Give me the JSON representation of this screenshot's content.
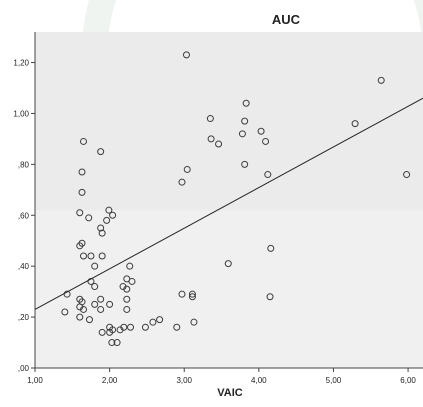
{
  "chart_data": {
    "type": "scatter",
    "title": "AUC",
    "xlabel": "VAIC",
    "ylabel": "",
    "xlim": [
      1.0,
      6.2
    ],
    "ylim": [
      0.0,
      1.32
    ],
    "x_ticks": [
      1.0,
      2.0,
      3.0,
      4.0,
      5.0,
      6.0
    ],
    "x_tick_labels": [
      "1,00",
      "2,00",
      "3,00",
      "4,00",
      "5,00",
      "6,00"
    ],
    "y_ticks": [
      0.0,
      0.2,
      0.4,
      0.6,
      0.8,
      1.0,
      1.2
    ],
    "y_tick_labels": [
      ",00",
      ",20",
      ",40",
      ",60",
      ",80",
      "1,00",
      "1,20"
    ],
    "grid": false,
    "fit_line": {
      "x": [
        1.0,
        6.2
      ],
      "y": [
        0.23,
        1.06
      ]
    },
    "colors": {
      "plot_bg": "#f0f0f0",
      "marker_stroke": "#3c3c3c",
      "line": "#222222",
      "axis": "#444444"
    },
    "points": [
      {
        "x": 3.03,
        "y": 1.23
      },
      {
        "x": 5.64,
        "y": 1.13
      },
      {
        "x": 3.83,
        "y": 1.04
      },
      {
        "x": 3.35,
        "y": 0.98
      },
      {
        "x": 3.81,
        "y": 0.97
      },
      {
        "x": 5.29,
        "y": 0.96
      },
      {
        "x": 4.03,
        "y": 0.93
      },
      {
        "x": 3.78,
        "y": 0.92
      },
      {
        "x": 3.36,
        "y": 0.9
      },
      {
        "x": 3.46,
        "y": 0.88
      },
      {
        "x": 4.09,
        "y": 0.89
      },
      {
        "x": 1.65,
        "y": 0.89
      },
      {
        "x": 1.88,
        "y": 0.85
      },
      {
        "x": 3.81,
        "y": 0.8
      },
      {
        "x": 3.04,
        "y": 0.78
      },
      {
        "x": 1.63,
        "y": 0.77
      },
      {
        "x": 4.12,
        "y": 0.76
      },
      {
        "x": 5.98,
        "y": 0.76
      },
      {
        "x": 2.97,
        "y": 0.73
      },
      {
        "x": 1.63,
        "y": 0.69
      },
      {
        "x": 1.6,
        "y": 0.61
      },
      {
        "x": 1.99,
        "y": 0.62
      },
      {
        "x": 1.72,
        "y": 0.59
      },
      {
        "x": 1.96,
        "y": 0.58
      },
      {
        "x": 2.04,
        "y": 0.6
      },
      {
        "x": 1.88,
        "y": 0.55
      },
      {
        "x": 1.9,
        "y": 0.53
      },
      {
        "x": 1.63,
        "y": 0.49
      },
      {
        "x": 1.6,
        "y": 0.48
      },
      {
        "x": 1.65,
        "y": 0.44
      },
      {
        "x": 1.75,
        "y": 0.44
      },
      {
        "x": 1.9,
        "y": 0.44
      },
      {
        "x": 1.8,
        "y": 0.4
      },
      {
        "x": 2.27,
        "y": 0.4
      },
      {
        "x": 1.75,
        "y": 0.34
      },
      {
        "x": 2.23,
        "y": 0.35
      },
      {
        "x": 2.3,
        "y": 0.34
      },
      {
        "x": 1.8,
        "y": 0.32
      },
      {
        "x": 2.18,
        "y": 0.32
      },
      {
        "x": 2.23,
        "y": 0.31
      },
      {
        "x": 1.43,
        "y": 0.29
      },
      {
        "x": 1.6,
        "y": 0.27
      },
      {
        "x": 1.88,
        "y": 0.27
      },
      {
        "x": 2.23,
        "y": 0.27
      },
      {
        "x": 1.63,
        "y": 0.26
      },
      {
        "x": 1.8,
        "y": 0.25
      },
      {
        "x": 2.0,
        "y": 0.25
      },
      {
        "x": 1.6,
        "y": 0.24
      },
      {
        "x": 1.65,
        "y": 0.23
      },
      {
        "x": 1.88,
        "y": 0.23
      },
      {
        "x": 2.23,
        "y": 0.23
      },
      {
        "x": 1.4,
        "y": 0.22
      },
      {
        "x": 1.6,
        "y": 0.2
      },
      {
        "x": 1.73,
        "y": 0.19
      },
      {
        "x": 2.67,
        "y": 0.19
      },
      {
        "x": 2.58,
        "y": 0.18
      },
      {
        "x": 3.13,
        "y": 0.18
      },
      {
        "x": 2.0,
        "y": 0.16
      },
      {
        "x": 2.19,
        "y": 0.16
      },
      {
        "x": 2.28,
        "y": 0.16
      },
      {
        "x": 2.9,
        "y": 0.16
      },
      {
        "x": 2.04,
        "y": 0.15
      },
      {
        "x": 2.14,
        "y": 0.15
      },
      {
        "x": 1.9,
        "y": 0.14
      },
      {
        "x": 2.48,
        "y": 0.16
      },
      {
        "x": 2.0,
        "y": 0.14
      },
      {
        "x": 2.03,
        "y": 0.1
      },
      {
        "x": 2.1,
        "y": 0.1
      },
      {
        "x": 2.97,
        "y": 0.29
      },
      {
        "x": 3.11,
        "y": 0.29
      },
      {
        "x": 3.11,
        "y": 0.28
      },
      {
        "x": 4.15,
        "y": 0.28
      },
      {
        "x": 3.59,
        "y": 0.41
      },
      {
        "x": 4.16,
        "y": 0.47
      }
    ]
  }
}
